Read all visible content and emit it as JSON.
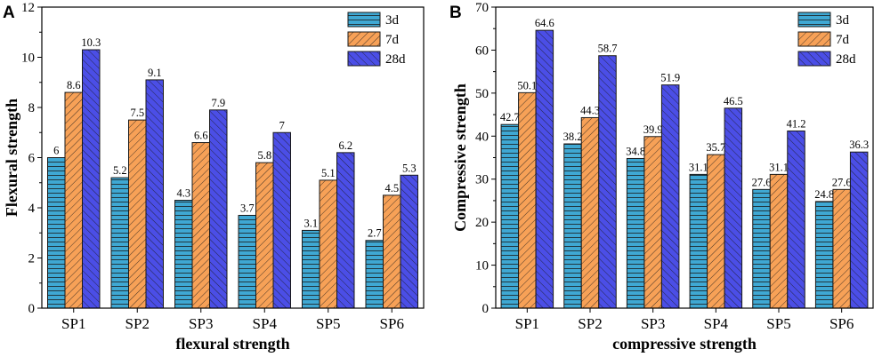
{
  "chart_data": [
    {
      "panel": "A",
      "type": "bar",
      "ylabel": "Flexural strength",
      "xlabel": "flexural strength",
      "categories": [
        "SP1",
        "SP2",
        "SP3",
        "SP4",
        "SP5",
        "SP6"
      ],
      "ylim": [
        0,
        12
      ],
      "yticks": [
        0,
        2,
        4,
        6,
        8,
        10,
        12
      ],
      "legend_position": "top-right",
      "series": [
        {
          "name": "3d",
          "values": [
            6,
            5.2,
            4.3,
            3.7,
            3.1,
            2.7
          ],
          "labels": [
            "6",
            "5.2",
            "4.3",
            "3.7",
            "3.1",
            "2.7"
          ],
          "color": "#3fa8d3",
          "pattern": "horizontal"
        },
        {
          "name": "7d",
          "values": [
            8.6,
            7.5,
            6.6,
            5.8,
            5.1,
            4.5
          ],
          "labels": [
            "8.6",
            "7.5",
            "6.6",
            "5.8",
            "5.1",
            "4.5"
          ],
          "color": "#f7a157",
          "pattern": "forward-diagonal"
        },
        {
          "name": "28d",
          "values": [
            10.3,
            9.1,
            7.9,
            7,
            6.2,
            5.3
          ],
          "labels": [
            "10.3",
            "9.1",
            "7.9",
            "7",
            "6.2",
            "5.3"
          ],
          "color": "#4b4ee6",
          "pattern": "back-diagonal"
        }
      ]
    },
    {
      "panel": "B",
      "type": "bar",
      "ylabel": "Compressive strength",
      "xlabel": "compressive strength",
      "categories": [
        "SP1",
        "SP2",
        "SP3",
        "SP4",
        "SP5",
        "SP6"
      ],
      "ylim": [
        0,
        70
      ],
      "yticks": [
        0,
        10,
        20,
        30,
        40,
        50,
        60,
        70
      ],
      "legend_position": "top-right",
      "series": [
        {
          "name": "3d",
          "values": [
            42.7,
            38.2,
            34.8,
            31.1,
            27.6,
            24.8
          ],
          "labels": [
            "42.7",
            "38.2",
            "34.8",
            "31.1",
            "27.6",
            "24.8"
          ],
          "color": "#3fa8d3",
          "pattern": "horizontal"
        },
        {
          "name": "7d",
          "values": [
            50.1,
            44.3,
            39.9,
            35.7,
            31.1,
            27.6
          ],
          "labels": [
            "50.1",
            "44.3",
            "39.9",
            "35.7",
            "31.1",
            "27.6"
          ],
          "color": "#f7a157",
          "pattern": "forward-diagonal"
        },
        {
          "name": "28d",
          "values": [
            64.6,
            58.7,
            51.9,
            46.5,
            41.2,
            36.3
          ],
          "labels": [
            "64.6",
            "58.7",
            "51.9",
            "46.5",
            "41.2",
            "36.3"
          ],
          "color": "#4b4ee6",
          "pattern": "back-diagonal"
        }
      ]
    }
  ]
}
